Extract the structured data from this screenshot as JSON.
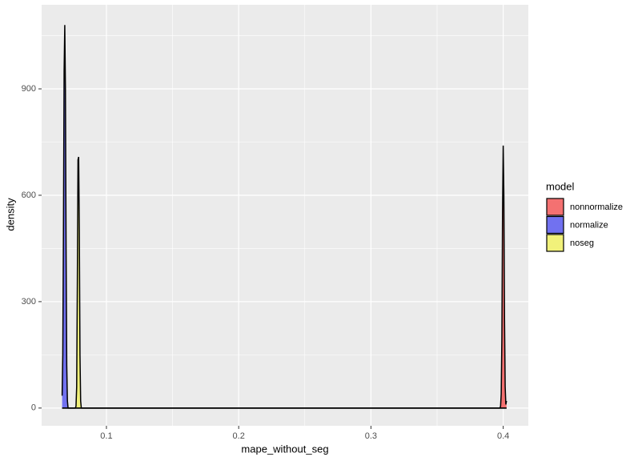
{
  "chart_data": {
    "type": "density",
    "x_label": "mape_without_seg",
    "y_label": "density",
    "xlim": [
      0.051,
      0.419
    ],
    "ylim": [
      -50,
      1137
    ],
    "xticks": [
      0.1,
      0.2,
      0.3,
      0.4
    ],
    "yticks": [
      0,
      300,
      600,
      900
    ],
    "xminor": [
      0.15,
      0.25,
      0.35
    ],
    "yminor": [
      150,
      450,
      750,
      1050
    ],
    "grid": true,
    "legend_title": "model",
    "legend_position": "right",
    "series": [
      {
        "name": "nonnormalize",
        "color": "#f47171",
        "x": [
          0.0665,
          0.3975,
          0.398,
          0.3985,
          0.399,
          0.3995,
          0.4,
          0.4005,
          0.401,
          0.4015,
          0.402,
          0.4025
        ],
        "values": [
          0,
          0,
          5,
          40,
          200,
          550,
          740,
          600,
          250,
          60,
          10,
          20
        ]
      },
      {
        "name": "normalize",
        "color": "#7171f0",
        "x": [
          0.0665,
          0.067,
          0.0675,
          0.068,
          0.0685,
          0.069,
          0.0695,
          0.07,
          0.0705,
          0.071,
          0.4025
        ],
        "values": [
          35,
          150,
          500,
          950,
          1080,
          900,
          450,
          120,
          20,
          0,
          0
        ]
      },
      {
        "name": "noseg",
        "color": "#f1f17a",
        "x": [
          0.0665,
          0.0765,
          0.077,
          0.0775,
          0.078,
          0.0785,
          0.079,
          0.0795,
          0.08,
          0.0805,
          0.081,
          0.4025
        ],
        "values": [
          0,
          0,
          5,
          60,
          350,
          700,
          708,
          500,
          150,
          20,
          0,
          0
        ]
      }
    ]
  }
}
